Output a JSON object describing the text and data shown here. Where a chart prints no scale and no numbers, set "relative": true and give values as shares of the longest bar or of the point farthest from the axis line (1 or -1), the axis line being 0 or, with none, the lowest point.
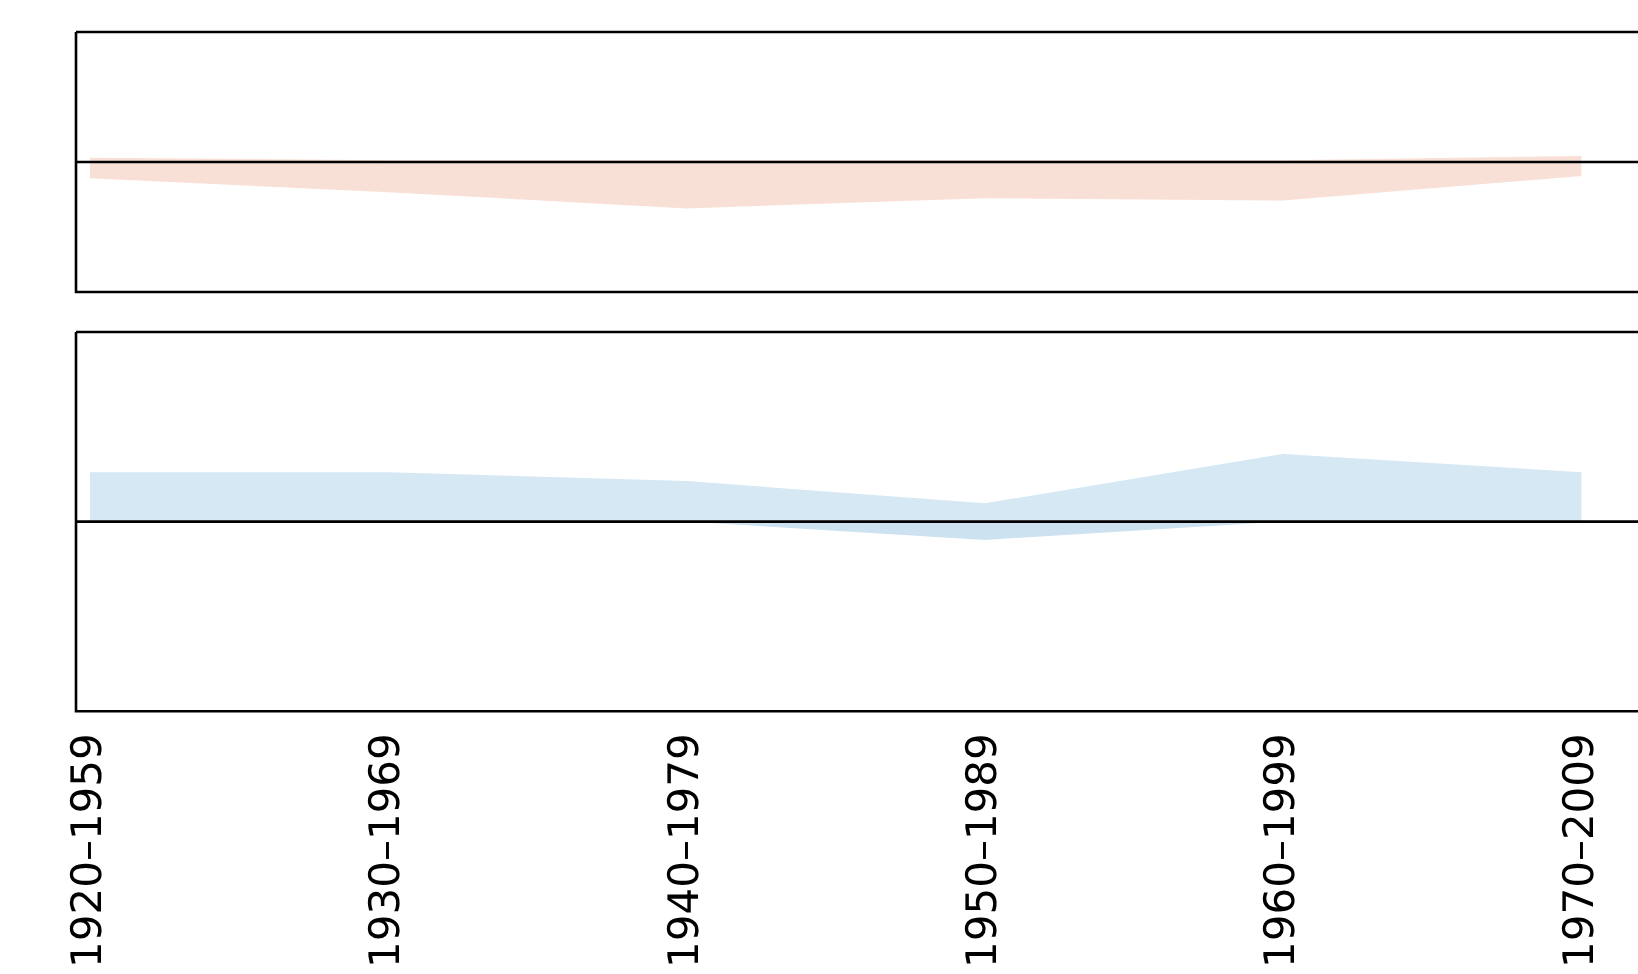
{
  "chart_data": [
    {
      "type": "area",
      "relative": true,
      "categories": [
        null,
        null,
        null,
        null,
        null,
        null
      ],
      "series": [
        {
          "color": "#f9e0d6",
          "values": [
            0.09,
            0.04,
            0.04,
            0.04,
            0.04,
            0.13
          ]
        },
        {
          "color": "#f9e0d6",
          "values": [
            -0.35,
            -0.65,
            -1,
            -0.78,
            -0.83,
            -0.3
          ]
        }
      ]
    },
    {
      "type": "area",
      "relative": true,
      "tick_labels": "x",
      "categories": [
        "1920–1959",
        "1930–1969",
        "1940–1979",
        "1950–1989",
        "1960–1999",
        "1970–2009"
      ],
      "series": [
        {
          "color": "#d6e8f4",
          "values": [
            0.73,
            0.73,
            0.6,
            0.27,
            1,
            0.73
          ]
        },
        {
          "color": "#cce2f0",
          "values": [
            0,
            0,
            0,
            -0.27,
            0,
            0
          ]
        }
      ]
    }
  ]
}
